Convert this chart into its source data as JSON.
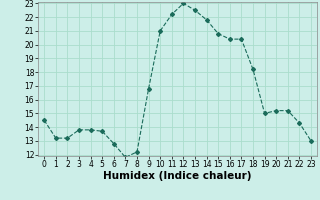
{
  "x": [
    0,
    1,
    2,
    3,
    4,
    5,
    6,
    7,
    8,
    9,
    10,
    11,
    12,
    13,
    14,
    15,
    16,
    17,
    18,
    19,
    20,
    21,
    22,
    23
  ],
  "y": [
    14.5,
    13.2,
    13.2,
    13.8,
    13.8,
    13.7,
    12.8,
    11.8,
    12.2,
    16.8,
    21.0,
    22.2,
    23.0,
    22.5,
    21.8,
    20.8,
    20.4,
    20.4,
    18.2,
    15.0,
    15.2,
    15.2,
    14.3,
    13.0
  ],
  "line_color": "#1a6b5a",
  "marker": "D",
  "marker_size": 2.0,
  "bg_color": "#cceee8",
  "grid_color": "#aaddcc",
  "xlabel": "Humidex (Indice chaleur)",
  "ylim": [
    12,
    23
  ],
  "xlim": [
    -0.5,
    23.5
  ],
  "yticks": [
    12,
    13,
    14,
    15,
    16,
    17,
    18,
    19,
    20,
    21,
    22,
    23
  ],
  "xticks": [
    0,
    1,
    2,
    3,
    4,
    5,
    6,
    7,
    8,
    9,
    10,
    11,
    12,
    13,
    14,
    15,
    16,
    17,
    18,
    19,
    20,
    21,
    22,
    23
  ],
  "tick_fontsize": 5.5,
  "xlabel_fontsize": 7.5
}
